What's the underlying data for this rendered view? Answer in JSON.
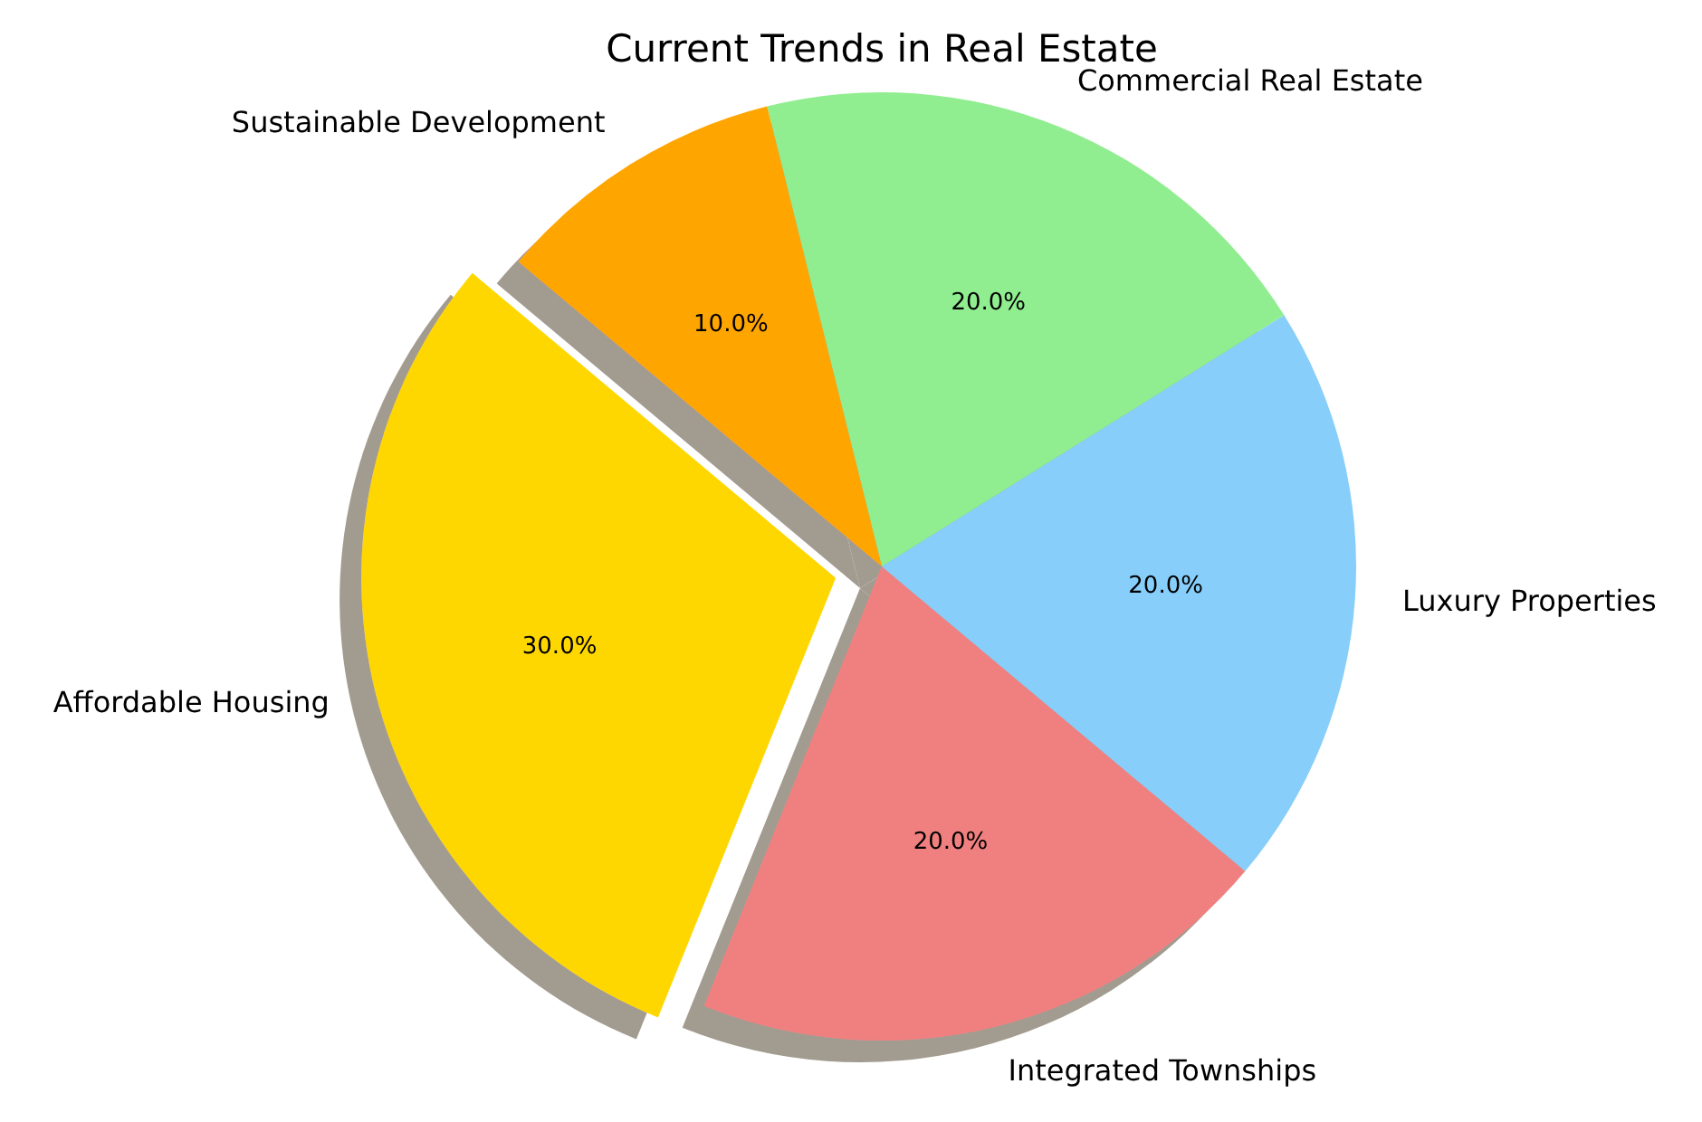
{
  "chart_data": {
    "type": "pie",
    "title": "Current Trends in Real Estate",
    "categories": [
      "Affordable Housing",
      "Integrated Townships",
      "Luxury Properties",
      "Commercial Real Estate",
      "Sustainable Development"
    ],
    "values": [
      30,
      20,
      20,
      20,
      10
    ],
    "colors": [
      "#ffd700",
      "#f08080",
      "#87cefa",
      "#90ee90",
      "#ffa500"
    ],
    "value_labels": [
      "30.0%",
      "20.0%",
      "20.0%",
      "20.0%",
      "10.0%"
    ]
  }
}
